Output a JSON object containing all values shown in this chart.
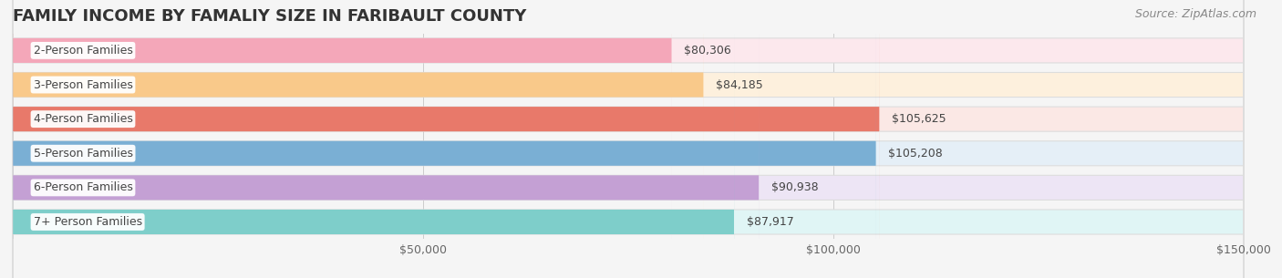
{
  "title": "FAMILY INCOME BY FAMALIY SIZE IN FARIBAULT COUNTY",
  "source": "Source: ZipAtlas.com",
  "categories": [
    "2-Person Families",
    "3-Person Families",
    "4-Person Families",
    "5-Person Families",
    "6-Person Families",
    "7+ Person Families"
  ],
  "values": [
    80306,
    84185,
    105625,
    105208,
    90938,
    87917
  ],
  "bar_colors": [
    "#f4a7b9",
    "#f9c98a",
    "#e8796a",
    "#7aafd4",
    "#c4a0d4",
    "#7ececa"
  ],
  "bar_bg_colors": [
    "#fce8ed",
    "#fdf0dd",
    "#fbe8e5",
    "#e5eff7",
    "#ede5f5",
    "#e0f5f5"
  ],
  "value_labels": [
    "$80,306",
    "$84,185",
    "$105,625",
    "$105,208",
    "$90,938",
    "$87,917"
  ],
  "xlim": [
    0,
    150000
  ],
  "xticks": [
    0,
    50000,
    100000,
    150000
  ],
  "xtick_labels": [
    "",
    "$50,000",
    "$100,000",
    "$150,000"
  ],
  "bg_color": "#f5f5f5",
  "title_fontsize": 13,
  "label_fontsize": 9,
  "value_fontsize": 9,
  "source_fontsize": 9
}
